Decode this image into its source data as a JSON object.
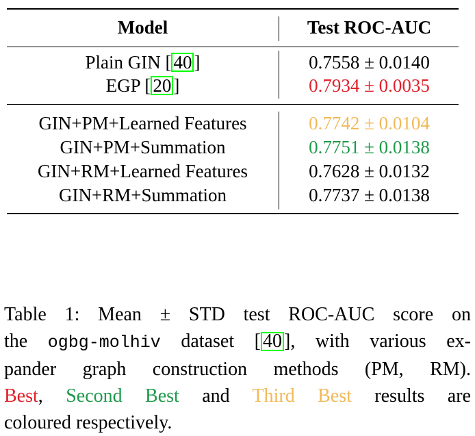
{
  "table": {
    "headers": {
      "model": "Model",
      "metric": "Test ROC-AUC"
    },
    "group1": [
      {
        "model": "Plain GIN [",
        "cite": "40",
        "suffix": "]",
        "score": "0.7558 ± 0.0140",
        "color": "#000000"
      },
      {
        "model": "EGP [",
        "cite": "20",
        "suffix": "]",
        "score": "0.7934 ± 0.0035",
        "color": "#e0202a"
      }
    ],
    "group2": [
      {
        "model": "GIN+PM+Learned Features",
        "score": "0.7742 ± 0.0104",
        "color": "#f2b95a"
      },
      {
        "model": "GIN+PM+Summation",
        "score": "0.7751 ± 0.0138",
        "color": "#1e9a4a"
      },
      {
        "model": "GIN+RM+Learned Features",
        "score": "0.7628 ± 0.0132",
        "color": "#000000"
      },
      {
        "model": "GIN+RM+Summation",
        "score": "0.7737 ± 0.0138",
        "color": "#000000"
      }
    ],
    "cite_box_color": "#00ff00"
  },
  "caption": {
    "l1": "Table 1: Mean ± STD test ROC-AUC score on",
    "l2a": "the ",
    "dataset": "ogbg-molhiv",
    "l2b": " dataset [",
    "cite": "40",
    "l2c": "], with various ex-",
    "l3": "pander graph construction methods (PM, RM).",
    "best": "Best",
    "sep1": ", ",
    "second": "Second Best",
    "and": " and ",
    "third": "Third Best",
    "l4tail": " results are",
    "l5": "coloured respectively.",
    "colors": {
      "best": "#e0202a",
      "second": "#1e9a4a",
      "third": "#f2b95a"
    }
  }
}
